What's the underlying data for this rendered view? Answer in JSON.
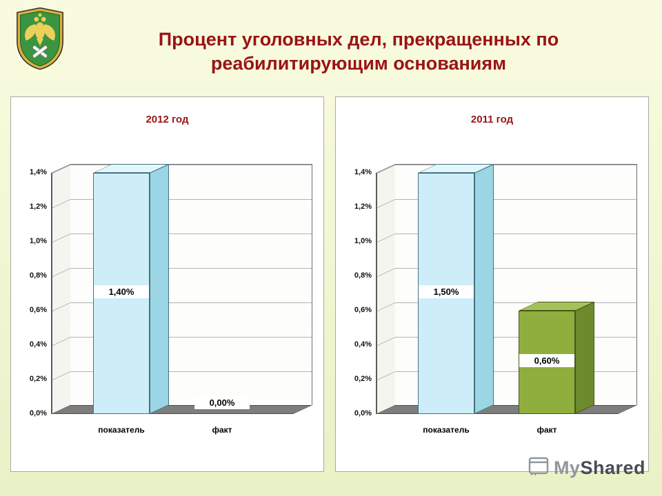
{
  "slide_title": "Процент уголовных дел, прекращенных по\nреабилитирующим основаниям",
  "chart_data": [
    {
      "type": "bar",
      "style": "3d-column",
      "title": "2012 год",
      "categories": [
        "показатель",
        "факт"
      ],
      "values": [
        1.4,
        0.0
      ],
      "value_labels": [
        "1,40%",
        "0,00%"
      ],
      "y_ticks": [
        "0,0%",
        "0,2%",
        "0,4%",
        "0,6%",
        "0,8%",
        "1,0%",
        "1,2%",
        "1,4%"
      ],
      "ylim": [
        0,
        1.4
      ],
      "grid": true,
      "legend": "none",
      "bar_colors": [
        {
          "front": "#cdeef8",
          "side": "#9bd6e4",
          "top": "#e2f7fc",
          "edge": "#46707e"
        },
        {
          "front": "#cdeef8",
          "side": "#9bd6e4",
          "top": "#e2f7fc",
          "edge": "#46707e"
        }
      ]
    },
    {
      "type": "bar",
      "style": "3d-column",
      "title": "2011 год",
      "categories": [
        "показатель",
        "факт"
      ],
      "values": [
        1.5,
        0.6
      ],
      "value_labels": [
        "1,50%",
        "0,60%"
      ],
      "y_ticks": [
        "0,0%",
        "0,2%",
        "0,4%",
        "0,6%",
        "0,8%",
        "1,0%",
        "1,2%",
        "1,4%"
      ],
      "ylim": [
        0,
        1.4
      ],
      "grid": true,
      "legend": "none",
      "bar_colors": [
        {
          "front": "#cdeef8",
          "side": "#9bd6e4",
          "top": "#e2f7fc",
          "edge": "#46707e"
        },
        {
          "front": "#8fae3e",
          "side": "#6d8a2c",
          "top": "#a6c157",
          "edge": "#44591a"
        }
      ]
    }
  ],
  "watermark": {
    "my": "My",
    "shared": "Shared"
  },
  "colors": {
    "title_text": "#991414",
    "slide_background": "#f3f7d6",
    "chart_floor": "#7d7d7d",
    "bar_cyan": "#cdeef8",
    "bar_green": "#8fae3e"
  }
}
